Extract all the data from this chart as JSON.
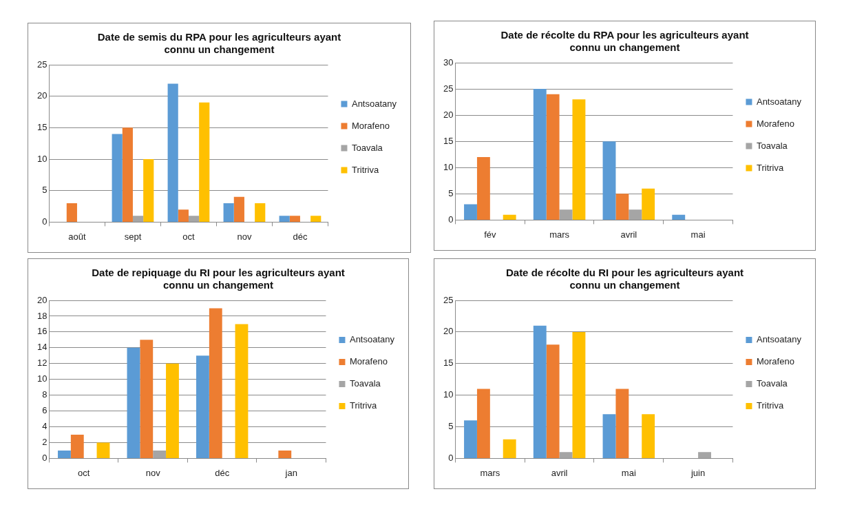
{
  "chart_data": [
    {
      "type": "bar",
      "title": "Date de semis du RPA pour les agriculteurs ayant connu un changement",
      "categories": [
        "août",
        "sept",
        "oct",
        "nov",
        "déc"
      ],
      "series": [
        {
          "name": "Antsoatany",
          "color": "#5b9bd5",
          "values": [
            0,
            14,
            22,
            3,
            1
          ]
        },
        {
          "name": "Morafeno",
          "color": "#ed7d31",
          "values": [
            3,
            15,
            2,
            4,
            1
          ]
        },
        {
          "name": "Toavala",
          "color": "#a5a5a5",
          "values": [
            0,
            1,
            1,
            0,
            0
          ]
        },
        {
          "name": "Tritriva",
          "color": "#ffc000",
          "values": [
            0,
            10,
            19,
            3,
            1
          ]
        }
      ],
      "ylim": [
        0,
        25
      ],
      "yticks": [
        0,
        5,
        10,
        15,
        20,
        25
      ],
      "grid": "y",
      "legend": "right"
    },
    {
      "type": "bar",
      "title": "Date de récolte du RPA pour les agriculteurs ayant connu un changement",
      "categories": [
        "fév",
        "mars",
        "avril",
        "mai"
      ],
      "series": [
        {
          "name": "Antsoatany",
          "color": "#5b9bd5",
          "values": [
            3,
            25,
            15,
            1
          ]
        },
        {
          "name": "Morafeno",
          "color": "#ed7d31",
          "values": [
            12,
            24,
            5,
            0
          ]
        },
        {
          "name": "Toavala",
          "color": "#a5a5a5",
          "values": [
            0,
            2,
            2,
            0
          ]
        },
        {
          "name": "Tritriva",
          "color": "#ffc000",
          "values": [
            1,
            23,
            6,
            0
          ]
        }
      ],
      "ylim": [
        0,
        30
      ],
      "yticks": [
        0,
        5,
        10,
        15,
        20,
        25,
        30
      ],
      "grid": "y",
      "legend": "right"
    },
    {
      "type": "bar",
      "title": "Date de repiquage du RI pour les agriculteurs ayant connu un changement",
      "categories": [
        "oct",
        "nov",
        "déc",
        "jan"
      ],
      "series": [
        {
          "name": "Antsoatany",
          "color": "#5b9bd5",
          "values": [
            1,
            14,
            13,
            0
          ]
        },
        {
          "name": "Morafeno",
          "color": "#ed7d31",
          "values": [
            3,
            15,
            19,
            1
          ]
        },
        {
          "name": "Toavala",
          "color": "#a5a5a5",
          "values": [
            0,
            1,
            0,
            0
          ]
        },
        {
          "name": "Tritriva",
          "color": "#ffc000",
          "values": [
            2,
            12,
            17,
            0
          ]
        }
      ],
      "ylim": [
        0,
        20
      ],
      "yticks": [
        0,
        2,
        4,
        6,
        8,
        10,
        12,
        14,
        16,
        18,
        20
      ],
      "grid": "y",
      "legend": "right"
    },
    {
      "type": "bar",
      "title": "Date de récolte du RI pour les agriculteurs ayant connu un changement",
      "categories": [
        "mars",
        "avril",
        "mai",
        "juin"
      ],
      "series": [
        {
          "name": "Antsoatany",
          "color": "#5b9bd5",
          "values": [
            6,
            21,
            7,
            0
          ]
        },
        {
          "name": "Morafeno",
          "color": "#ed7d31",
          "values": [
            11,
            18,
            11,
            0
          ]
        },
        {
          "name": "Toavala",
          "color": "#a5a5a5",
          "values": [
            0,
            1,
            0,
            1
          ]
        },
        {
          "name": "Tritriva",
          "color": "#ffc000",
          "values": [
            3,
            20,
            7,
            0
          ]
        }
      ],
      "ylim": [
        0,
        25
      ],
      "yticks": [
        0,
        5,
        10,
        15,
        20,
        25
      ],
      "grid": "y",
      "legend": "right"
    }
  ]
}
